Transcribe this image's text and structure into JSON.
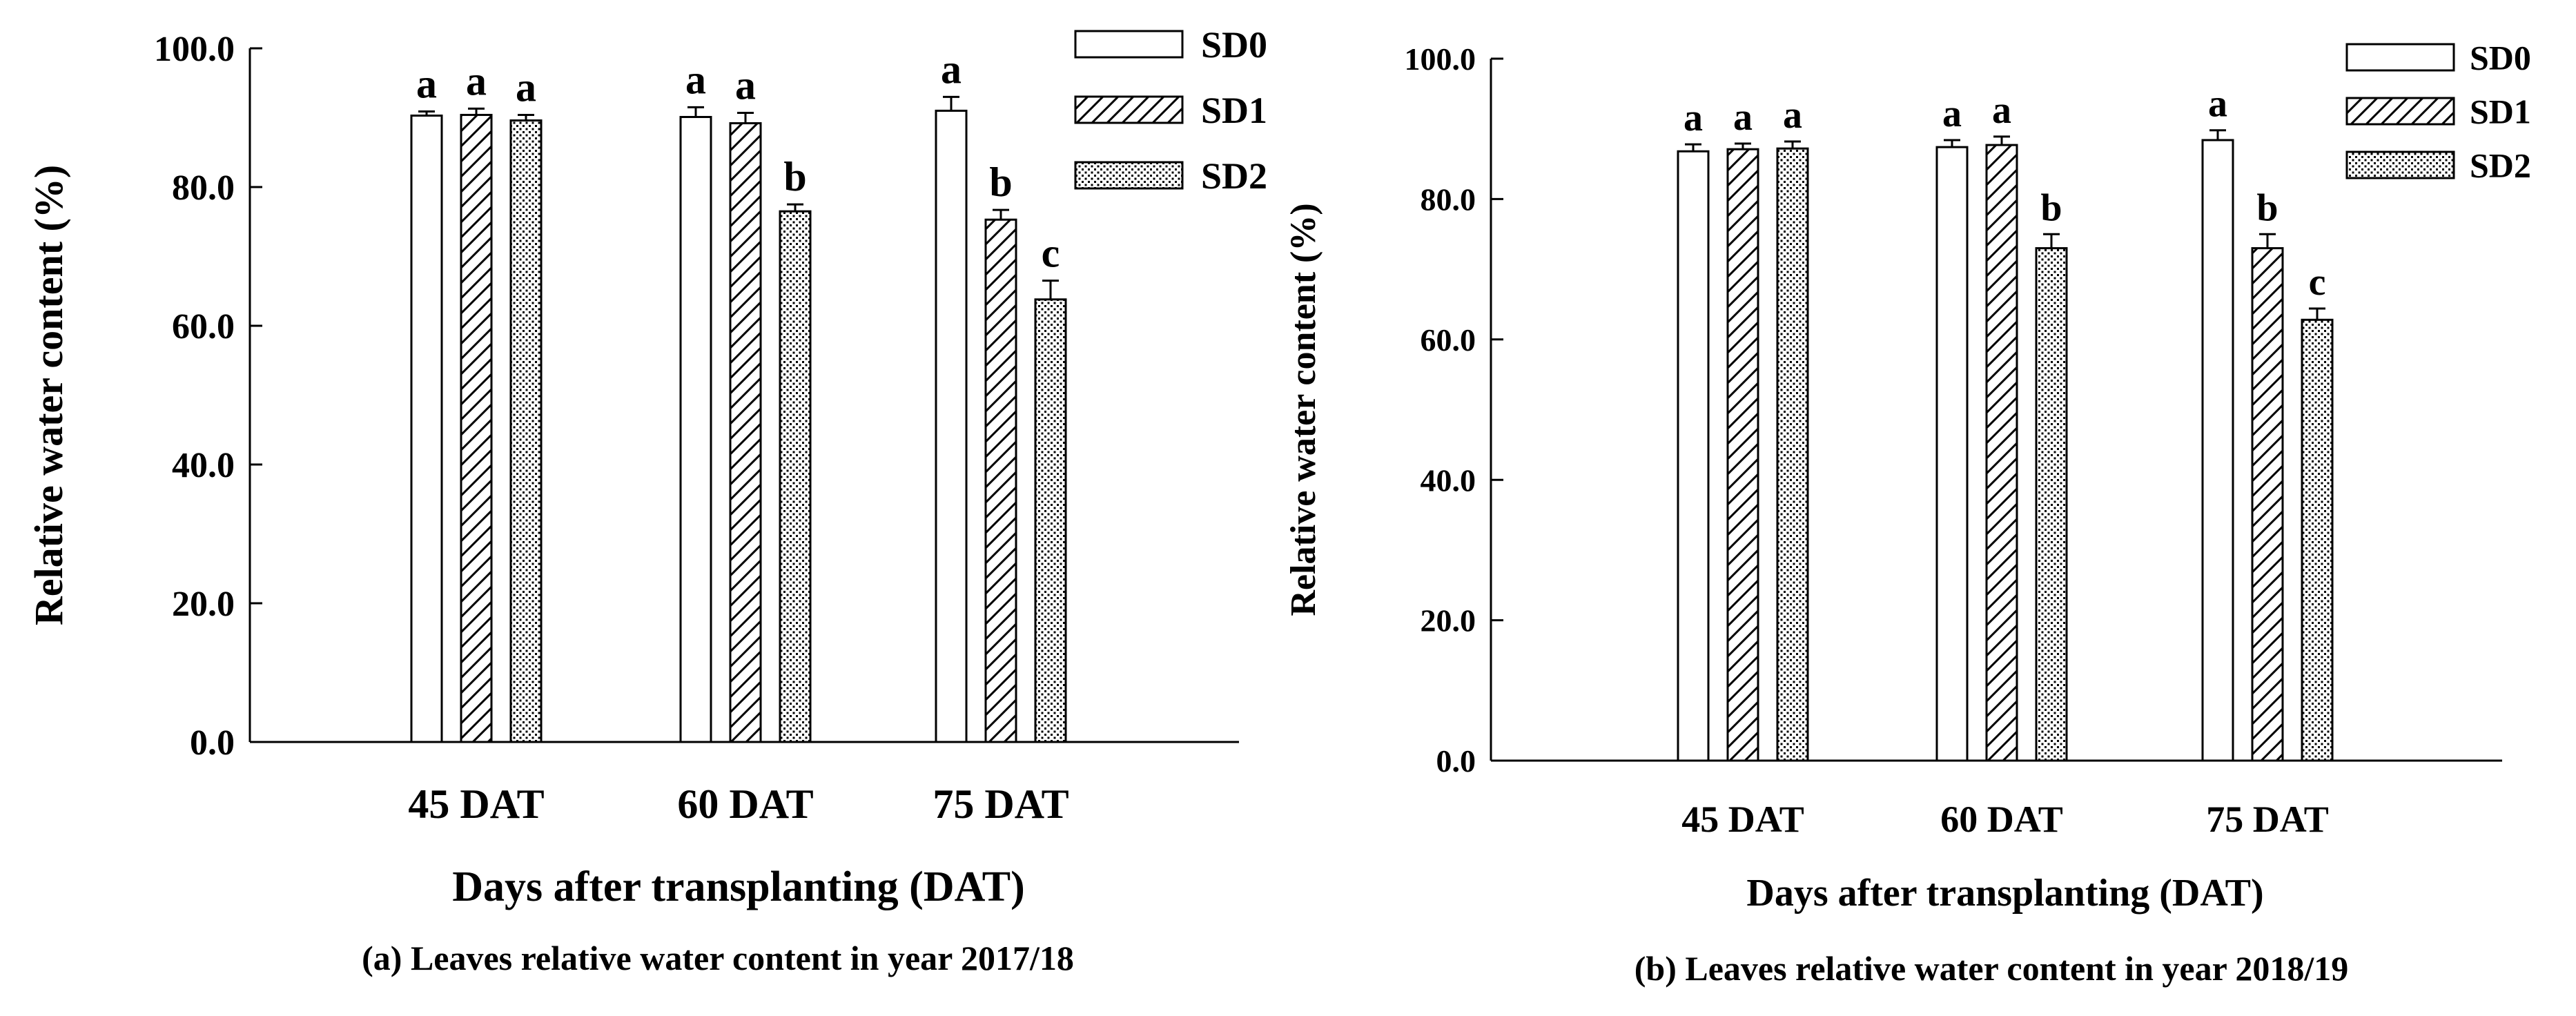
{
  "chart_data": [
    {
      "type": "bar",
      "title": "(a) Leaves relative water content in year 2017/18",
      "xlabel": "Days after transplanting (DAT)",
      "ylabel": "Relative water content (%)",
      "categories": [
        "45 DAT",
        "60 DAT",
        "75 DAT"
      ],
      "ylim": [
        0,
        100
      ],
      "yticks": [
        "0.0",
        "20.0",
        "40.0",
        "60.0",
        "80.0",
        "100.0"
      ],
      "legend_position": "top-right",
      "series": [
        {
          "name": "SD0",
          "pattern": "open",
          "values": [
            90.3,
            90.1,
            91.0
          ],
          "errors": [
            0.6,
            1.4,
            2.0
          ],
          "letters": [
            "a",
            "a",
            "a"
          ]
        },
        {
          "name": "SD1",
          "pattern": "hatched",
          "values": [
            90.4,
            89.2,
            75.3
          ],
          "errors": [
            0.9,
            1.5,
            1.4
          ],
          "letters": [
            "a",
            "a",
            "b"
          ]
        },
        {
          "name": "SD2",
          "pattern": "dotted",
          "values": [
            89.6,
            76.5,
            63.8
          ],
          "errors": [
            0.8,
            1.0,
            2.7
          ],
          "letters": [
            "a",
            "b",
            "c"
          ]
        }
      ]
    },
    {
      "type": "bar",
      "title": "(b) Leaves relative water content in year 2018/19",
      "xlabel": "Days after transplanting (DAT)",
      "ylabel": "Relative water content (%)",
      "categories": [
        "45 DAT",
        "60 DAT",
        "75 DAT"
      ],
      "ylim": [
        0,
        100
      ],
      "yticks": [
        "0.0",
        "20.0",
        "40.0",
        "60.0",
        "80.0",
        "100.0"
      ],
      "legend_position": "top-right",
      "series": [
        {
          "name": "SD0",
          "pattern": "open",
          "values": [
            86.8,
            87.4,
            88.4
          ],
          "errors": [
            1.0,
            1.0,
            1.4
          ],
          "letters": [
            "a",
            "a",
            "a"
          ]
        },
        {
          "name": "SD1",
          "pattern": "hatched",
          "values": [
            87.1,
            87.7,
            73.0
          ],
          "errors": [
            0.8,
            1.2,
            2.0
          ],
          "letters": [
            "a",
            "a",
            "b"
          ]
        },
        {
          "name": "SD2",
          "pattern": "dotted",
          "values": [
            87.2,
            73.0,
            62.8
          ],
          "errors": [
            1.0,
            2.0,
            1.6
          ],
          "letters": [
            "a",
            "b",
            "c"
          ]
        }
      ]
    }
  ]
}
